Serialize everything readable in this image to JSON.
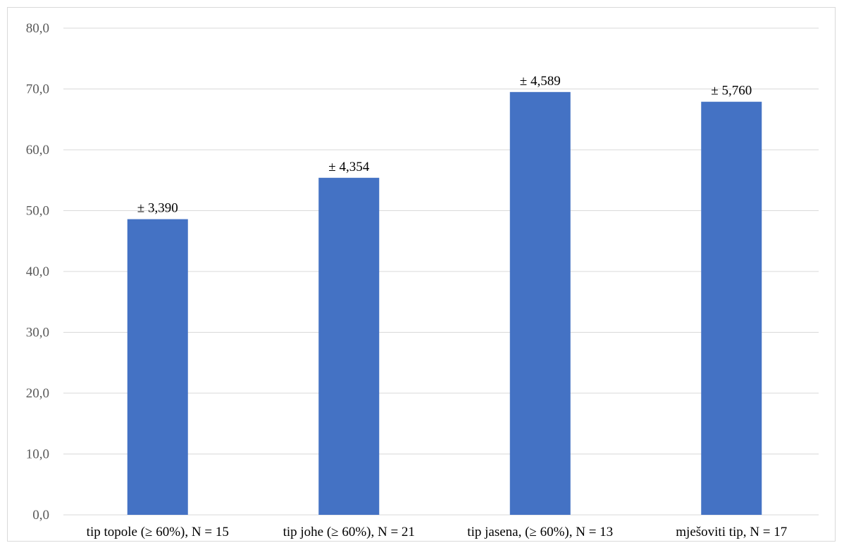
{
  "chart_data": {
    "type": "bar",
    "title": "",
    "xlabel": "",
    "ylabel": "",
    "categories": [
      "tip topole (≥ 60%), N = 15",
      "tip johe (≥ 60%), N = 21",
      "tip jasena, (≥ 60%), N = 13",
      "mješoviti tip, N = 17"
    ],
    "values": [
      48.6,
      55.4,
      69.5,
      67.9
    ],
    "data_labels": [
      "± 3,390",
      "± 4,354",
      "± 4,589",
      "± 5,760"
    ],
    "ylim": [
      0,
      80
    ],
    "yticks": [
      0,
      10,
      20,
      30,
      40,
      50,
      60,
      70,
      80
    ],
    "ytick_labels": [
      "0,0",
      "10,0",
      "20,0",
      "30,0",
      "40,0",
      "50,0",
      "60,0",
      "70,0",
      "80,0"
    ],
    "grid": true,
    "legend": "none",
    "colors": {
      "bar": "#4472C4",
      "grid": "#D9D9D9",
      "tick_text": "#595959"
    }
  }
}
